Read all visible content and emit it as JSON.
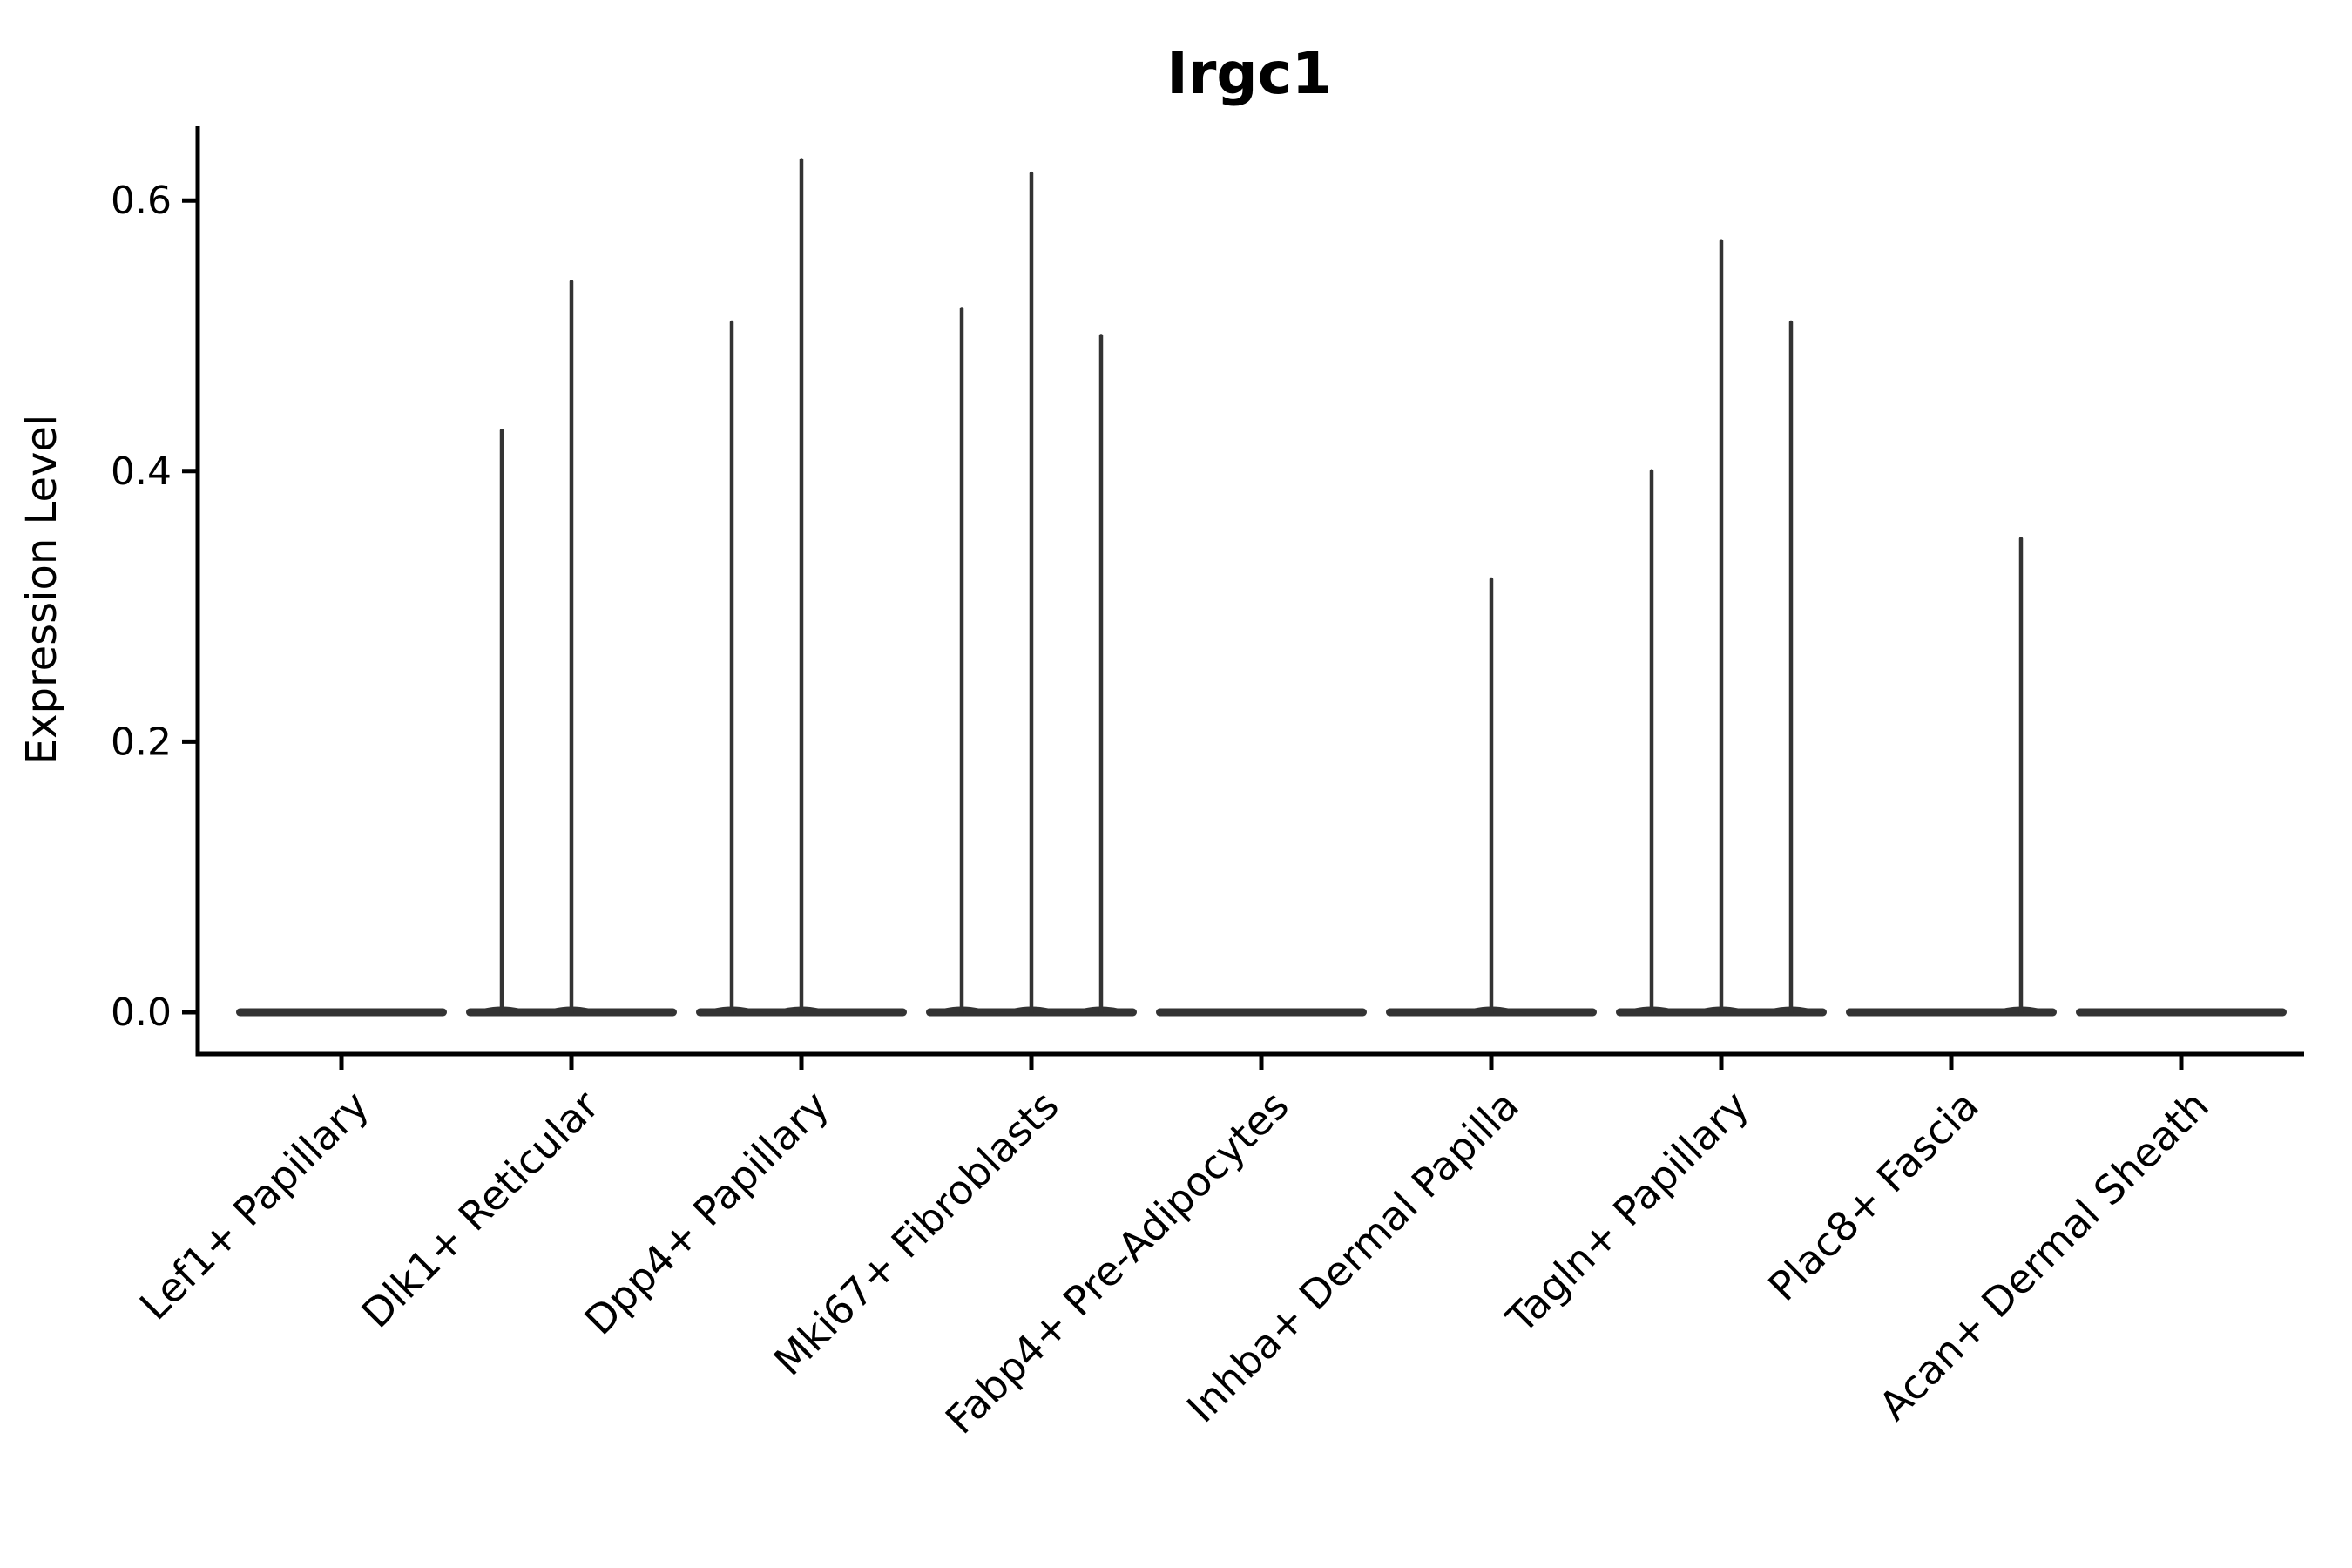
{
  "chart_data": {
    "type": "violin",
    "title": "Irgc1",
    "xlabel": "",
    "ylabel": "Expression Level",
    "categories": [
      "Lef1+ Papillary",
      "Dlk1+ Reticular",
      "Dpp4+ Papillary",
      "Mki67+ Fibroblasts",
      "Fabp4+ Pre-Adipocytes",
      "Inhba+ Dermal Papilla",
      "Tagln+ Papillary",
      "Plac8+ Fascia",
      "Acan+ Dermal Sheath"
    ],
    "violins_per_category": 3,
    "series": [
      {
        "category": "Lef1+ Papillary",
        "max_values": [
          0,
          0,
          0
        ]
      },
      {
        "category": "Dlk1+ Reticular",
        "max_values": [
          0.43,
          0.54,
          0
        ]
      },
      {
        "category": "Dpp4+ Papillary",
        "max_values": [
          0.51,
          0.63,
          0
        ]
      },
      {
        "category": "Mki67+ Fibroblasts",
        "max_values": [
          0.52,
          0.62,
          0.5
        ]
      },
      {
        "category": "Fabp4+ Pre-Adipocytes",
        "max_values": [
          0,
          0,
          0
        ]
      },
      {
        "category": "Inhba+ Dermal Papilla",
        "max_values": [
          0,
          0.32,
          0
        ]
      },
      {
        "category": "Tagln+ Papillary",
        "max_values": [
          0.4,
          0.57,
          0.51
        ]
      },
      {
        "category": "Plac8+ Fascia",
        "max_values": [
          0,
          0,
          0.35
        ]
      },
      {
        "category": "Acan+ Dermal Sheath",
        "max_values": [
          0,
          0,
          0
        ]
      }
    ],
    "distribution_note": "each violin is massed at 0 (flat base) with a thin spike up to its max value",
    "yticks": [
      "0.0",
      "0.2",
      "0.4",
      "0.6"
    ],
    "ylim": [
      -0.03,
      0.655
    ],
    "grid": false,
    "legend": "none",
    "colors": {
      "violin": "#333333",
      "axis": "#000000",
      "text": "#000000",
      "background": "#ffffff"
    }
  }
}
